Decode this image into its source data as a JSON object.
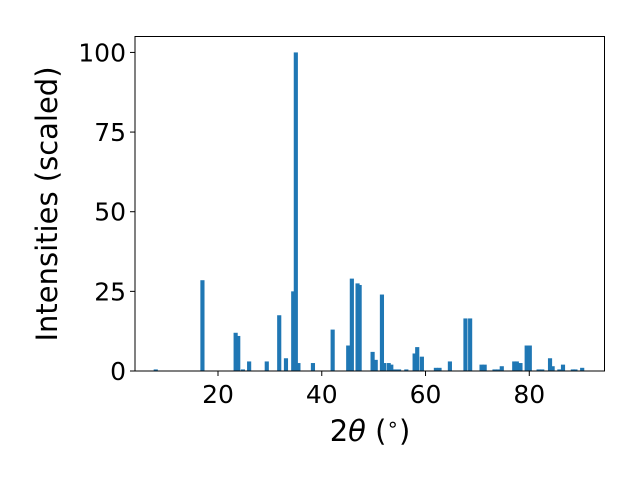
{
  "chart_data": {
    "type": "bar",
    "title": "",
    "xlabel_parts": [
      "2",
      "θ",
      " (",
      "∘",
      ")"
    ],
    "ylabel": "Intensities (scaled)",
    "xlim": [
      4.0,
      94.5
    ],
    "ylim": [
      0,
      105
    ],
    "xticks": [
      20,
      40,
      60,
      80
    ],
    "yticks": [
      0,
      25,
      50,
      75,
      100
    ],
    "bar_width": 0.8,
    "grid": false,
    "color": "#1f77b4",
    "x": [
      8.0,
      17.0,
      23.4,
      23.9,
      24.8,
      26.0,
      29.4,
      31.8,
      33.1,
      34.5,
      35.0,
      35.5,
      38.3,
      42.1,
      45.1,
      45.8,
      46.9,
      47.3,
      49.8,
      50.4,
      51.6,
      52.0,
      52.9,
      53.4,
      54.1,
      54.9,
      56.3,
      57.9,
      58.4,
      59.3,
      62.0,
      62.7,
      64.7,
      67.7,
      68.6,
      70.8,
      71.4,
      73.3,
      74.0,
      74.7,
      77.1,
      77.6,
      78.3,
      79.5,
      80.1,
      81.8,
      82.5,
      84.0,
      84.5,
      85.8,
      86.5,
      88.4,
      88.9,
      90.2
    ],
    "values": [
      0.5,
      28.5,
      12.0,
      11.0,
      0.5,
      3.0,
      3.0,
      17.5,
      4.0,
      25.0,
      100.0,
      2.5,
      2.5,
      13.0,
      8.0,
      29.0,
      27.5,
      27.0,
      6.0,
      3.5,
      24.0,
      2.5,
      2.5,
      2.0,
      0.5,
      0.5,
      0.5,
      5.5,
      7.5,
      4.5,
      1.0,
      1.0,
      3.0,
      16.5,
      16.5,
      2.0,
      2.0,
      0.5,
      0.5,
      1.5,
      3.0,
      3.0,
      2.5,
      8.0,
      8.0,
      0.5,
      0.5,
      4.0,
      1.5,
      0.5,
      2.0,
      0.5,
      0.5,
      1.0
    ]
  }
}
